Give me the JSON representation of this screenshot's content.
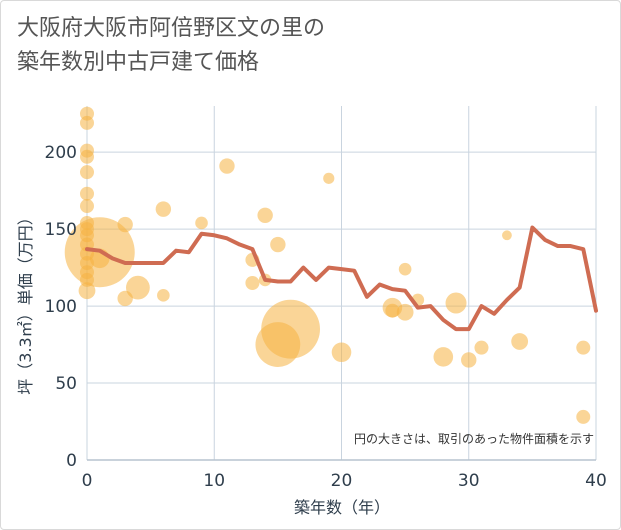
{
  "chart_data": {
    "type": "scatter",
    "title_lines": [
      "大阪府大阪市阿倍野区文の里の",
      "築年数別中古戸建て価格"
    ],
    "xlabel": "築年数（年）",
    "ylabel": "坪（3.3㎡）単価（万円）",
    "xlim": [
      0,
      40
    ],
    "ylim": [
      0,
      230
    ],
    "x_ticks": [
      0,
      10,
      20,
      30,
      40
    ],
    "y_ticks": [
      0,
      50,
      100,
      150,
      200
    ],
    "grid": true,
    "note": "円の大きさは、取引のあった物件面積を示す",
    "colors": {
      "bubble": "#f5b342",
      "line": "#cf6c52",
      "grid": "#c9d4df",
      "text": "#2f3e4c"
    },
    "scatter_points": [
      {
        "x": 0,
        "y": 225,
        "s": 1
      },
      {
        "x": 0,
        "y": 219,
        "s": 1
      },
      {
        "x": 0,
        "y": 201,
        "s": 1
      },
      {
        "x": 0,
        "y": 197,
        "s": 1
      },
      {
        "x": 0,
        "y": 187,
        "s": 1
      },
      {
        "x": 0,
        "y": 173,
        "s": 1
      },
      {
        "x": 0,
        "y": 165,
        "s": 1
      },
      {
        "x": 0,
        "y": 154,
        "s": 1
      },
      {
        "x": 0,
        "y": 150,
        "s": 1
      },
      {
        "x": 0,
        "y": 146,
        "s": 1
      },
      {
        "x": 0,
        "y": 140,
        "s": 1
      },
      {
        "x": 0,
        "y": 134,
        "s": 1
      },
      {
        "x": 0,
        "y": 128,
        "s": 1
      },
      {
        "x": 0,
        "y": 122,
        "s": 1
      },
      {
        "x": 0,
        "y": 117,
        "s": 1
      },
      {
        "x": 0,
        "y": 110,
        "s": 1.2
      },
      {
        "x": 1,
        "y": 135,
        "s": 5
      },
      {
        "x": 1,
        "y": 131,
        "s": 1.4
      },
      {
        "x": 3,
        "y": 153,
        "s": 1.1
      },
      {
        "x": 3,
        "y": 105,
        "s": 1.1
      },
      {
        "x": 4,
        "y": 112,
        "s": 1.7
      },
      {
        "x": 6,
        "y": 163,
        "s": 1.1
      },
      {
        "x": 6,
        "y": 107,
        "s": 0.9
      },
      {
        "x": 9,
        "y": 154,
        "s": 0.9
      },
      {
        "x": 11,
        "y": 191,
        "s": 1.1
      },
      {
        "x": 13,
        "y": 130,
        "s": 1.0
      },
      {
        "x": 13,
        "y": 115,
        "s": 1.0
      },
      {
        "x": 14,
        "y": 159,
        "s": 1.1
      },
      {
        "x": 14,
        "y": 117,
        "s": 0.9
      },
      {
        "x": 15,
        "y": 140,
        "s": 1.1
      },
      {
        "x": 15,
        "y": 75,
        "s": 3.2
      },
      {
        "x": 16,
        "y": 85,
        "s": 4.2
      },
      {
        "x": 19,
        "y": 183,
        "s": 0.8
      },
      {
        "x": 20,
        "y": 70,
        "s": 1.4
      },
      {
        "x": 24,
        "y": 99,
        "s": 1.4
      },
      {
        "x": 24,
        "y": 97,
        "s": 1.0
      },
      {
        "x": 25,
        "y": 124,
        "s": 0.9
      },
      {
        "x": 25,
        "y": 96,
        "s": 1.2
      },
      {
        "x": 26,
        "y": 104,
        "s": 0.9
      },
      {
        "x": 28,
        "y": 67,
        "s": 1.4
      },
      {
        "x": 29,
        "y": 102,
        "s": 1.5
      },
      {
        "x": 30,
        "y": 65,
        "s": 1.1
      },
      {
        "x": 31,
        "y": 73,
        "s": 1.0
      },
      {
        "x": 33,
        "y": 146,
        "s": 0.7
      },
      {
        "x": 34,
        "y": 77,
        "s": 1.2
      },
      {
        "x": 39,
        "y": 73,
        "s": 1.0
      },
      {
        "x": 39,
        "y": 28,
        "s": 1.0
      }
    ],
    "line_series": {
      "x": [
        0,
        1,
        2,
        3,
        4,
        5,
        6,
        7,
        8,
        9,
        10,
        11,
        12,
        13,
        14,
        15,
        16,
        17,
        18,
        19,
        20,
        21,
        22,
        23,
        24,
        25,
        26,
        27,
        28,
        29,
        30,
        31,
        32,
        33,
        34,
        35,
        36,
        37,
        38,
        39,
        40
      ],
      "y": [
        137,
        136,
        131,
        128,
        128,
        128,
        128,
        136,
        135,
        147,
        146,
        144,
        140,
        137,
        117,
        116,
        116,
        125,
        117,
        125,
        124,
        123,
        106,
        114,
        111,
        110,
        99,
        100,
        91,
        85,
        85,
        100,
        95,
        104,
        112,
        151,
        143,
        139,
        139,
        137,
        97
      ]
    }
  }
}
